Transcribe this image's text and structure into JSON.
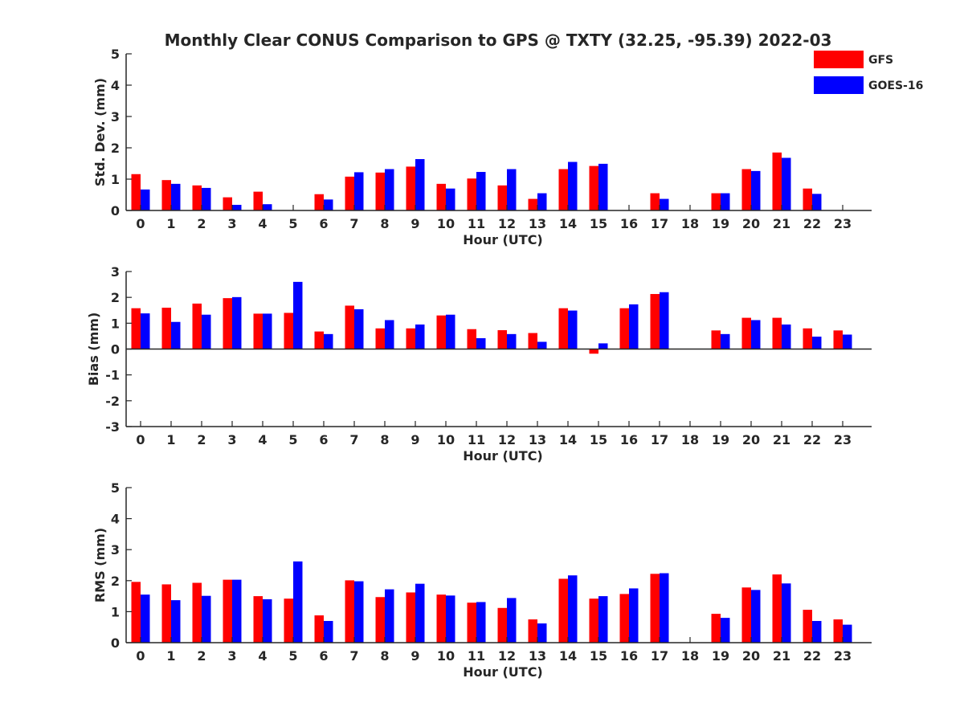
{
  "colors": {
    "GFS": "#ff0000",
    "GOES-16": "#0000ff",
    "axis": "#262626"
  },
  "chart_data": [
    {
      "type": "bar",
      "title": "Monthly Clear CONUS Comparison to GPS @ TXTY (32.25, -95.39) 2022-03",
      "xlabel": "Hour (UTC)",
      "ylabel": "Std. Dev. (mm)",
      "ylim": [
        0,
        5
      ],
      "yticks": [
        "0",
        "1",
        "2",
        "3",
        "4",
        "5"
      ],
      "categories": [
        "0",
        "1",
        "2",
        "3",
        "4",
        "5",
        "6",
        "7",
        "8",
        "9",
        "10",
        "11",
        "12",
        "13",
        "14",
        "15",
        "16",
        "17",
        "18",
        "19",
        "20",
        "21",
        "22",
        "23"
      ],
      "series": [
        {
          "name": "GFS",
          "values": [
            1.16,
            0.97,
            0.8,
            0.42,
            0.6,
            null,
            0.52,
            1.08,
            1.21,
            1.4,
            0.85,
            1.02,
            0.8,
            0.37,
            1.32,
            1.42,
            null,
            0.55,
            null,
            0.55,
            1.32,
            1.85,
            0.7,
            null
          ]
        },
        {
          "name": "GOES-16",
          "values": [
            0.67,
            0.85,
            0.72,
            0.18,
            0.2,
            null,
            0.35,
            1.22,
            1.32,
            1.64,
            0.7,
            1.23,
            1.32,
            0.55,
            1.55,
            1.49,
            null,
            0.37,
            null,
            0.55,
            1.26,
            1.68,
            0.53,
            null
          ]
        }
      ],
      "legend": {
        "position": "top-right",
        "entries": [
          "GFS",
          "GOES-16"
        ]
      },
      "grid": false
    },
    {
      "type": "bar",
      "xlabel": "Hour (UTC)",
      "ylabel": "Bias (mm)",
      "ylim": [
        -3,
        3
      ],
      "yticks": [
        "-3",
        "-2",
        "-1",
        "0",
        "1",
        "2",
        "3"
      ],
      "categories": [
        "0",
        "1",
        "2",
        "3",
        "4",
        "5",
        "6",
        "7",
        "8",
        "9",
        "10",
        "11",
        "12",
        "13",
        "14",
        "15",
        "16",
        "17",
        "18",
        "19",
        "20",
        "21",
        "22",
        "23"
      ],
      "series": [
        {
          "name": "GFS",
          "values": [
            1.58,
            1.6,
            1.76,
            1.97,
            1.37,
            1.4,
            0.68,
            1.68,
            0.8,
            0.8,
            1.3,
            0.77,
            0.73,
            0.62,
            1.58,
            -0.18,
            1.58,
            2.13,
            null,
            0.72,
            1.21,
            1.21,
            0.8,
            0.72
          ]
        },
        {
          "name": "GOES-16",
          "values": [
            1.38,
            1.05,
            1.33,
            2.01,
            1.37,
            2.6,
            0.58,
            1.54,
            1.12,
            0.95,
            1.33,
            0.42,
            0.58,
            0.28,
            1.49,
            0.22,
            1.73,
            2.2,
            null,
            0.58,
            1.12,
            0.95,
            0.48,
            0.56
          ]
        }
      ],
      "grid": false
    },
    {
      "type": "bar",
      "xlabel": "Hour (UTC)",
      "ylabel": "RMS (mm)",
      "ylim": [
        0,
        5
      ],
      "yticks": [
        "0",
        "1",
        "2",
        "3",
        "4",
        "5"
      ],
      "categories": [
        "0",
        "1",
        "2",
        "3",
        "4",
        "5",
        "6",
        "7",
        "8",
        "9",
        "10",
        "11",
        "12",
        "13",
        "14",
        "15",
        "16",
        "17",
        "18",
        "19",
        "20",
        "21",
        "22",
        "23"
      ],
      "series": [
        {
          "name": "GFS",
          "values": [
            1.96,
            1.88,
            1.93,
            2.03,
            1.5,
            1.42,
            0.88,
            2.01,
            1.47,
            1.62,
            1.55,
            1.29,
            1.12,
            0.75,
            2.06,
            1.42,
            1.57,
            2.22,
            null,
            0.93,
            1.78,
            2.2,
            1.06,
            0.75
          ]
        },
        {
          "name": "GOES-16",
          "values": [
            1.55,
            1.37,
            1.51,
            2.03,
            1.4,
            2.62,
            0.7,
            1.98,
            1.72,
            1.9,
            1.52,
            1.31,
            1.44,
            0.62,
            2.17,
            1.5,
            1.75,
            2.24,
            null,
            0.8,
            1.7,
            1.91,
            0.7,
            0.58
          ]
        }
      ],
      "grid": false
    }
  ]
}
